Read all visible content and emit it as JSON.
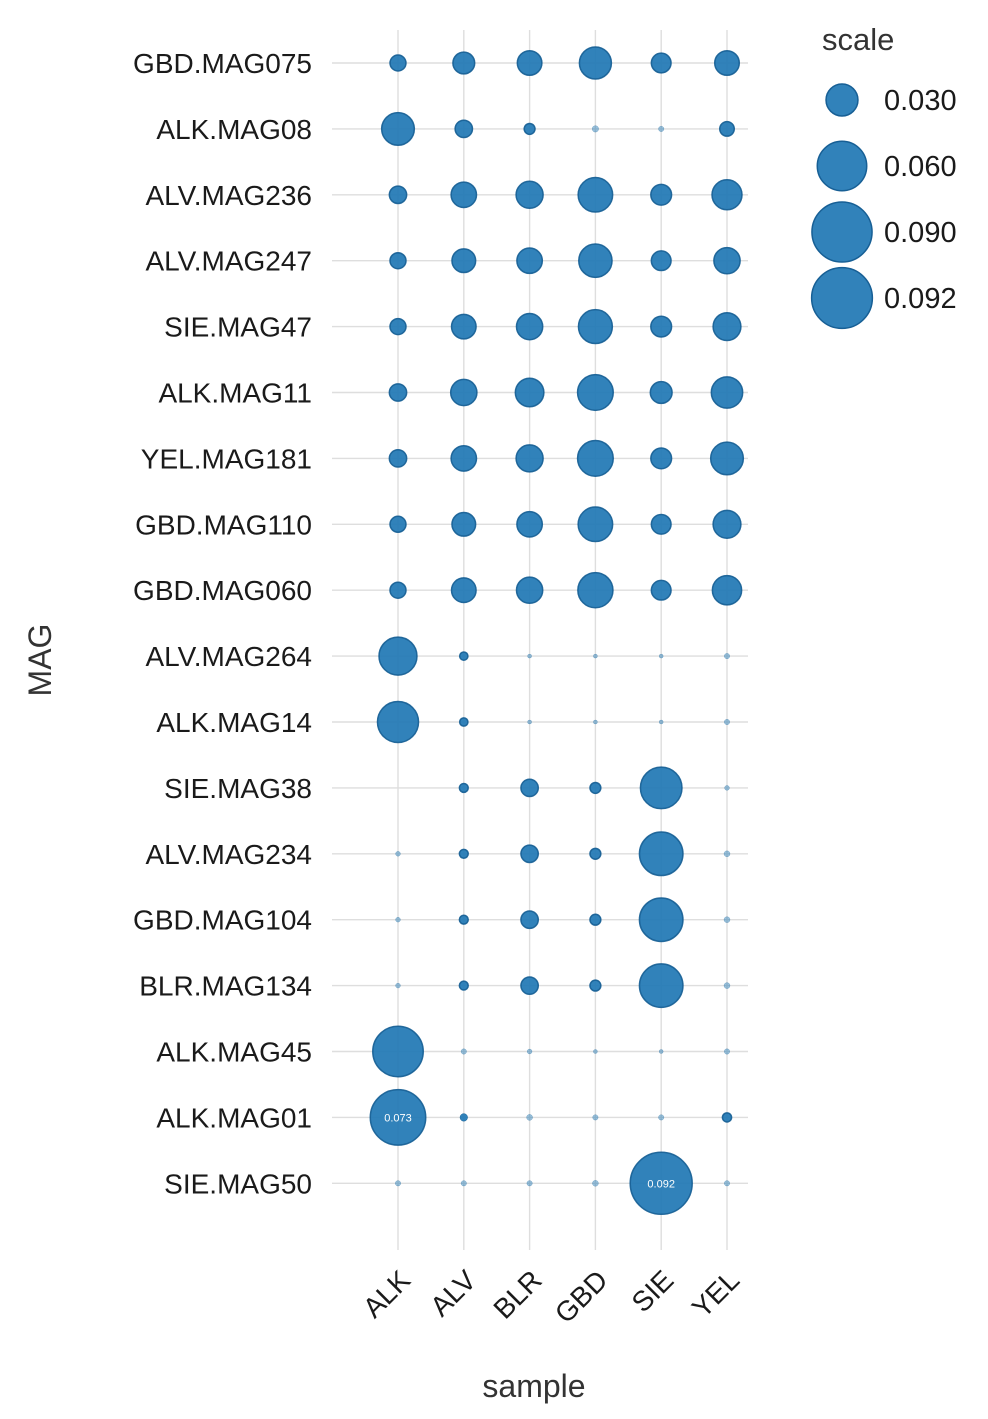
{
  "colors": {
    "point_fill": "#1f77b4",
    "point_stroke": "#175f95",
    "grid": "#dedede",
    "label": "#ffffff"
  },
  "chart_data": {
    "type": "scatter",
    "subtype": "bubble-matrix",
    "xlabel": "sample",
    "ylabel": "MAG",
    "x_categories": [
      "ALK",
      "ALV",
      "BLR",
      "GBD",
      "SIE",
      "YEL"
    ],
    "y_categories": [
      "GBD.MAG075",
      "ALK.MAG08",
      "ALV.MAG236",
      "ALV.MAG247",
      "SIE.MAG47",
      "ALK.MAG11",
      "YEL.MAG181",
      "GBD.MAG110",
      "GBD.MAG060",
      "ALV.MAG264",
      "ALK.MAG14",
      "SIE.MAG38",
      "ALV.MAG234",
      "GBD.MAG104",
      "BLR.MAG134",
      "ALK.MAG45",
      "ALK.MAG01",
      "SIE.MAG50"
    ],
    "values": [
      [
        0.005,
        0.01,
        0.013,
        0.023,
        0.008,
        0.013
      ],
      [
        0.024,
        0.006,
        0.002,
        0.0005,
        0.0003,
        0.004
      ],
      [
        0.006,
        0.014,
        0.016,
        0.027,
        0.009,
        0.02
      ],
      [
        0.005,
        0.012,
        0.014,
        0.025,
        0.008,
        0.015
      ],
      [
        0.005,
        0.013,
        0.015,
        0.026,
        0.009,
        0.017
      ],
      [
        0.006,
        0.015,
        0.018,
        0.029,
        0.01,
        0.022
      ],
      [
        0.006,
        0.014,
        0.016,
        0.029,
        0.009,
        0.024
      ],
      [
        0.005,
        0.012,
        0.014,
        0.027,
        0.008,
        0.017
      ],
      [
        0.005,
        0.013,
        0.015,
        0.028,
        0.008,
        0.019
      ],
      [
        0.033,
        0.001,
        0.0001,
        0.0001,
        0.0001,
        0.0003
      ],
      [
        0.039,
        0.001,
        0.0001,
        0.0001,
        0.0001,
        0.0003
      ],
      [
        0,
        0.0012,
        0.006,
        0.002,
        0.04,
        0.0002
      ],
      [
        0.0002,
        0.0012,
        0.006,
        0.002,
        0.044,
        0.0004
      ],
      [
        0.0002,
        0.0012,
        0.006,
        0.002,
        0.044,
        0.0004
      ],
      [
        0.0002,
        0.0012,
        0.006,
        0.002,
        0.044,
        0.0004
      ],
      [
        0.06,
        0.0003,
        0.0002,
        0.0001,
        0.0001,
        0.0003
      ],
      [
        0.073,
        0.0008,
        0.0004,
        0.0003,
        0.0003,
        0.0013
      ],
      [
        0.0003,
        0.0003,
        0.0003,
        0.0004,
        0.092,
        0.0003
      ]
    ],
    "data_labels": [
      {
        "row": "ALK.MAG01",
        "col": "ALK",
        "text": "0.073"
      },
      {
        "row": "SIE.MAG50",
        "col": "SIE",
        "text": "0.092"
      }
    ],
    "size_legend": {
      "title": "scale",
      "values": [
        0.03,
        0.06,
        0.09,
        0.092
      ],
      "labels": [
        "0.030",
        "0.060",
        "0.090",
        "0.092"
      ],
      "placement": "right"
    },
    "grid": true
  }
}
